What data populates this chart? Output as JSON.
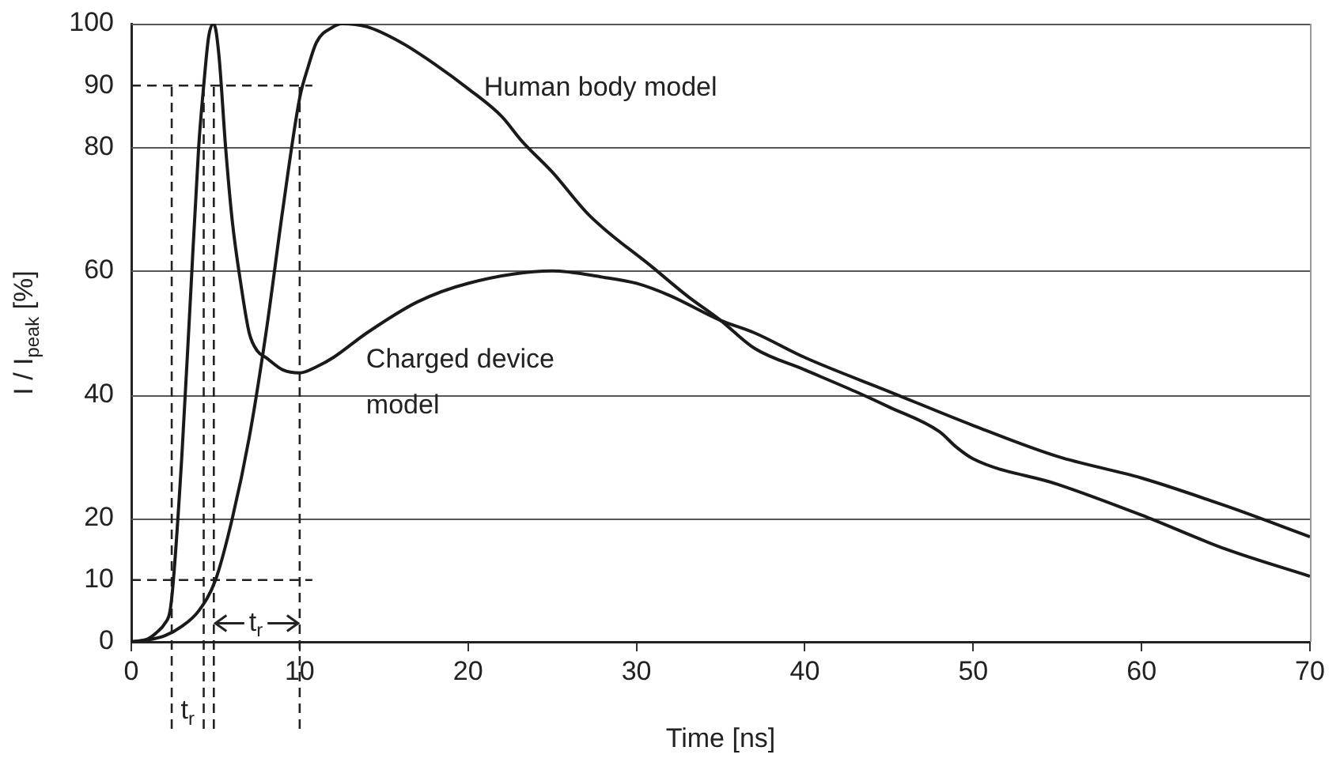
{
  "chart_data": {
    "type": "line",
    "xlabel": "Time [ns]",
    "ylabel": "I / I$_{peak}$ [%]",
    "xlim": [
      0,
      70
    ],
    "xticks": [
      0,
      10,
      20,
      30,
      40,
      50,
      60,
      70
    ],
    "ylim": [
      0,
      100
    ],
    "yticks": [
      0,
      10,
      20,
      40,
      60,
      80,
      90,
      100
    ],
    "grid": "y",
    "legend": false,
    "marker": "none",
    "line_style": "solid",
    "series": [
      {
        "name": "Charged device model",
        "color": "#1a1a1a",
        "x": [
          0,
          1,
          1.5,
          2,
          2.3,
          2.5,
          3,
          3.5,
          4,
          4.3,
          4.6,
          4.9,
          5.2,
          5.6,
          6,
          6.5,
          7,
          7.5,
          8,
          9,
          10,
          11,
          12,
          14,
          17,
          20,
          25,
          28,
          30,
          32,
          35,
          37,
          40,
          45,
          50,
          55,
          60,
          65,
          70
        ],
        "values": [
          0,
          0.5,
          1.5,
          3,
          5,
          10,
          30,
          55,
          80,
          90,
          98,
          100,
          95,
          80,
          68,
          58,
          50,
          47,
          46,
          44,
          43.5,
          44.5,
          46,
          50,
          55,
          58,
          60,
          59,
          58,
          56,
          52,
          50,
          46,
          40.5,
          35,
          30,
          26.5,
          22,
          17
        ]
      },
      {
        "name": "Human body model",
        "color": "#1a1a1a",
        "x": [
          0,
          1,
          2,
          3,
          4,
          5,
          6,
          7,
          8,
          9,
          10,
          10.5,
          11,
          12,
          12.5,
          14,
          16,
          18,
          20,
          22,
          23.2,
          25,
          27.2,
          31,
          33,
          35,
          37,
          40,
          43,
          45,
          48,
          49,
          50,
          55,
          60,
          65,
          70
        ],
        "values": [
          0,
          0.3,
          1,
          2.5,
          5,
          10,
          20,
          33,
          50,
          70,
          88,
          93,
          97,
          99.5,
          100,
          99.5,
          97,
          93.5,
          89.5,
          85,
          81,
          76,
          69,
          60.5,
          56,
          52,
          47.5,
          44,
          40.5,
          38,
          34,
          31.5,
          29.6,
          25.5,
          20.5,
          15,
          10.6
        ]
      }
    ],
    "ref_lines": [
      {
        "axis": "y",
        "value": 10,
        "line_style": "dashed"
      },
      {
        "axis": "y",
        "value": 90,
        "line_style": "dashed"
      },
      {
        "axis": "x",
        "value": 2.4,
        "line_style": "dashed"
      },
      {
        "axis": "x",
        "value": 4.3,
        "line_style": "dashed"
      },
      {
        "axis": "x",
        "value": 4.9,
        "line_style": "dashed"
      },
      {
        "axis": "x",
        "value": 10,
        "line_style": "dashed"
      }
    ],
    "annotations": [
      {
        "text": "t$_{r}$",
        "x": 7.4,
        "y": 3
      },
      "t$_{r}$"
    ]
  }
}
